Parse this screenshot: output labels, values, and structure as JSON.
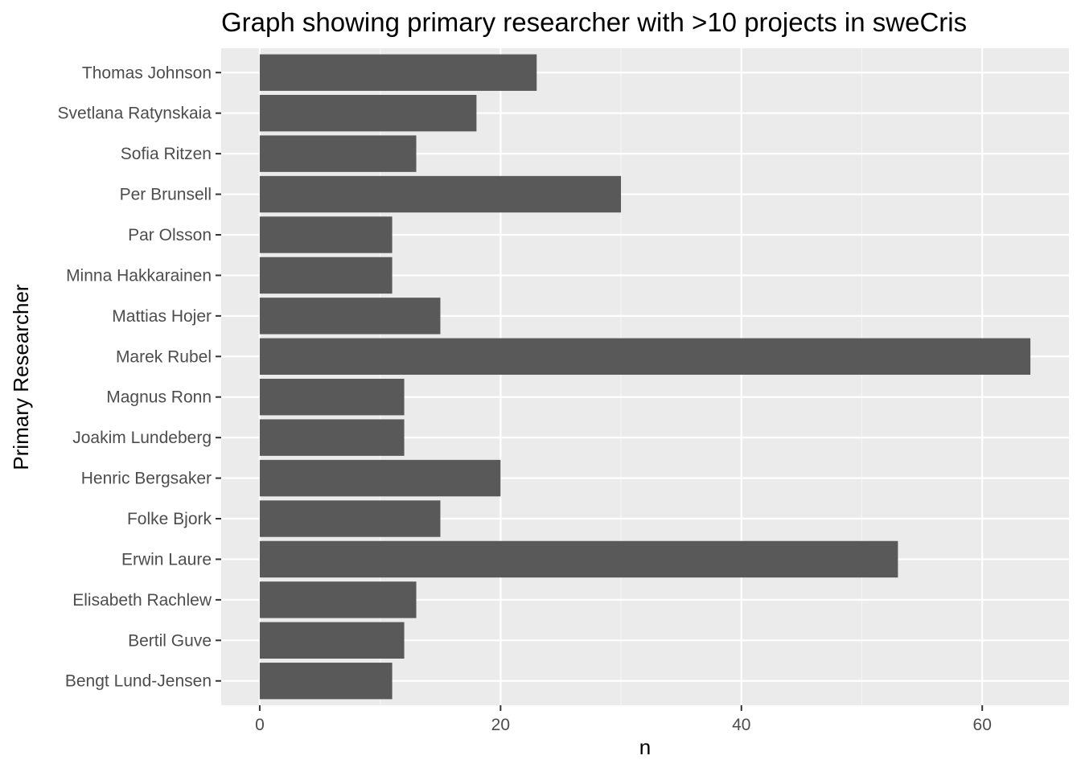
{
  "chart_data": {
    "type": "bar",
    "orientation": "horizontal",
    "title": "Graph showing primary researcher with >10 projects in sweCris",
    "xlabel": "n",
    "ylabel": "Primary Researcher",
    "categories": [
      "Thomas Johnson",
      "Svetlana Ratynskaia",
      "Sofia Ritzen",
      "Per Brunsell",
      "Par Olsson",
      "Minna Hakkarainen",
      "Mattias Hojer",
      "Marek Rubel",
      "Magnus Ronn",
      "Joakim Lundeberg",
      "Henric Bergsaker",
      "Folke Bjork",
      "Erwin Laure",
      "Elisabeth Rachlew",
      "Bertil Guve",
      "Bengt Lund-Jensen"
    ],
    "values": [
      23,
      18,
      13,
      30,
      11,
      11,
      15,
      64,
      12,
      12,
      20,
      15,
      53,
      13,
      12,
      11
    ],
    "xlim": [
      -3.2,
      67.2
    ],
    "xticks": [
      0,
      20,
      40,
      60
    ],
    "grid": true,
    "legend": "none",
    "colors": {
      "bar": "#595959",
      "panel": "#ebebeb",
      "grid_major": "#ffffff",
      "grid_minor": "#f5f5f5"
    }
  }
}
